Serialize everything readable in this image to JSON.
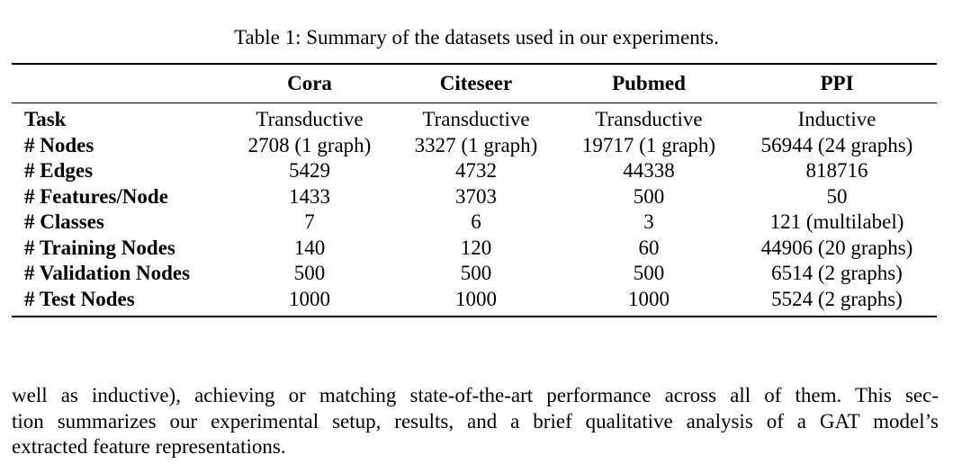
{
  "caption": "Table 1: Summary of the datasets used in our experiments.",
  "table": {
    "headers": [
      "",
      "Cora",
      "Citeseer",
      "Pubmed",
      "PPI"
    ],
    "rows": [
      {
        "label": "Task",
        "values": [
          "Transductive",
          "Transductive",
          "Transductive",
          "Inductive"
        ]
      },
      {
        "label": "# Nodes",
        "values": [
          "2708 (1 graph)",
          "3327 (1 graph)",
          "19717 (1 graph)",
          "56944 (24 graphs)"
        ]
      },
      {
        "label": "# Edges",
        "values": [
          "5429",
          "4732",
          "44338",
          "818716"
        ]
      },
      {
        "label": "# Features/Node",
        "values": [
          "1433",
          "3703",
          "500",
          "50"
        ]
      },
      {
        "label": "# Classes",
        "values": [
          "7",
          "6",
          "3",
          "121 (multilabel)"
        ]
      },
      {
        "label": "# Training Nodes",
        "values": [
          "140",
          "120",
          "60",
          "44906 (20 graphs)"
        ]
      },
      {
        "label": "# Validation Nodes",
        "values": [
          "500",
          "500",
          "500",
          "6514 (2 graphs)"
        ]
      },
      {
        "label": "# Test Nodes",
        "values": [
          "1000",
          "1000",
          "1000",
          "5524 (2 graphs)"
        ]
      }
    ]
  },
  "paragraph": {
    "lines": [
      "well as inductive), achieving or matching state-of-the-art performance across all of them. This sec-",
      "tion summarizes our experimental setup, results, and a brief qualitative analysis of a GAT model’s",
      "extracted feature representations."
    ]
  }
}
